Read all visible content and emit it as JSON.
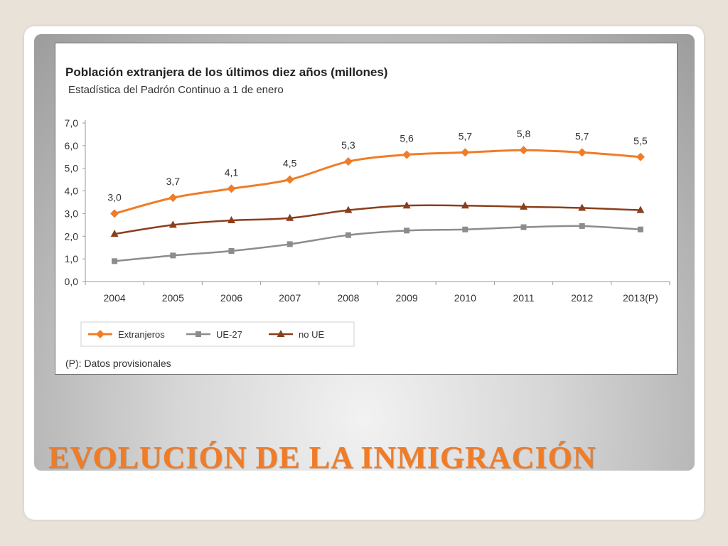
{
  "slide": {
    "title": "EVOLUCIÓN DE LA INMIGRACIÓN"
  },
  "chart_data": {
    "type": "line",
    "title": "Población extranjera de los últimos diez años (millones)",
    "subtitle": "Estadística del Padrón Continuo a 1 de enero",
    "categories": [
      "2004",
      "2005",
      "2006",
      "2007",
      "2008",
      "2009",
      "2010",
      "2011",
      "2012",
      "2013(P)"
    ],
    "ylim": [
      0,
      7
    ],
    "yticks": [
      "0,0",
      "1,0",
      "2,0",
      "3,0",
      "4,0",
      "5,0",
      "6,0",
      "7,0"
    ],
    "series": [
      {
        "name": "Extranjeros",
        "color": "#f07c28",
        "marker": "diamond",
        "values": [
          3.0,
          3.7,
          4.1,
          4.5,
          5.3,
          5.6,
          5.7,
          5.8,
          5.7,
          5.5
        ],
        "labels": [
          "3,0",
          "3,7",
          "4,1",
          "4,5",
          "5,3",
          "5,6",
          "5,7",
          "5,8",
          "5,7",
          "5,5"
        ]
      },
      {
        "name": "UE-27",
        "color": "#8c8c8c",
        "marker": "square",
        "values": [
          0.9,
          1.15,
          1.35,
          1.65,
          2.05,
          2.25,
          2.3,
          2.4,
          2.45,
          2.3
        ]
      },
      {
        "name": "no UE",
        "color": "#8b3e1c",
        "marker": "triangle",
        "values": [
          2.1,
          2.5,
          2.7,
          2.8,
          3.15,
          3.35,
          3.35,
          3.3,
          3.25,
          3.15
        ]
      }
    ],
    "legend_position": "bottom-left",
    "grid": false,
    "note": "(P): Datos provisionales"
  }
}
